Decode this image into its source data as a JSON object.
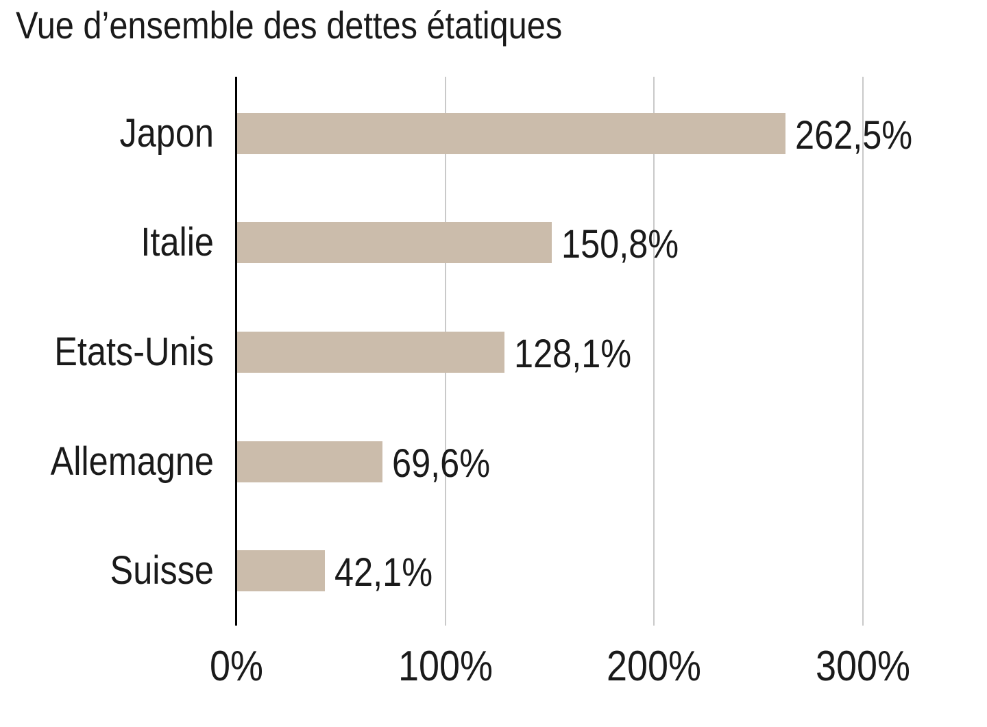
{
  "page": {
    "background": "#ffffff"
  },
  "chart_data": {
    "type": "bar",
    "orientation": "horizontal",
    "title": "Vue d’ensemble des dettes étatiques",
    "categories": [
      "Japon",
      "Italie",
      "Etats-Unis",
      "Allemagne",
      "Suisse"
    ],
    "values": [
      262.5,
      150.8,
      128.1,
      69.6,
      42.1
    ],
    "value_labels": [
      "262,5%",
      "150,8%",
      "128,1%",
      "69,6%",
      "42,1%"
    ],
    "x_ticks": [
      {
        "value": 0,
        "label": "0%"
      },
      {
        "value": 100,
        "label": "100%"
      },
      {
        "value": 200,
        "label": "200%"
      },
      {
        "value": 300,
        "label": "300%"
      }
    ],
    "xlim": [
      0,
      359
    ],
    "xlabel": "",
    "ylabel": "",
    "grid": "vertical-only",
    "legend": "none",
    "colors": {
      "bar": "#cbbcab",
      "gridline": "#c9c9c9",
      "axis": "#000000",
      "text": "#1a1a1a"
    }
  }
}
